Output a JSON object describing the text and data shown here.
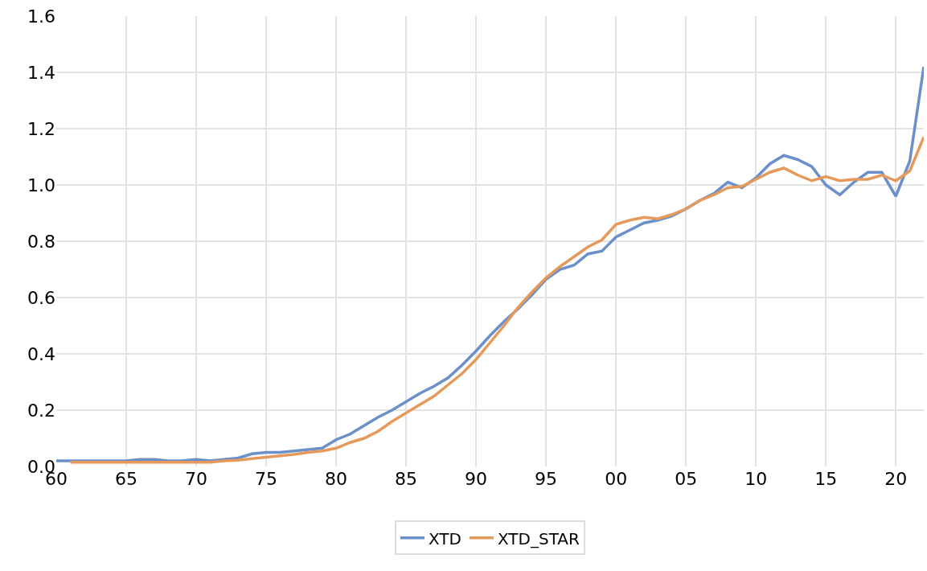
{
  "chart_data": {
    "type": "line",
    "x": [
      1960,
      1961,
      1962,
      1963,
      1964,
      1965,
      1966,
      1967,
      1968,
      1969,
      1970,
      1971,
      1972,
      1973,
      1974,
      1975,
      1976,
      1977,
      1978,
      1979,
      1980,
      1981,
      1982,
      1983,
      1984,
      1985,
      1986,
      1987,
      1988,
      1989,
      1990,
      1991,
      1992,
      1993,
      1994,
      1995,
      1996,
      1997,
      1998,
      1999,
      2000,
      2001,
      2002,
      2003,
      2004,
      2005,
      2006,
      2007,
      2008,
      2009,
      2010,
      2011,
      2012,
      2013,
      2014,
      2015,
      2016,
      2017,
      2018,
      2019,
      2020,
      2021,
      2022
    ],
    "series": [
      {
        "name": "XTD",
        "color": "#6a8fc9",
        "values": [
          0.02,
          0.02,
          0.02,
          0.02,
          0.02,
          0.02,
          0.025,
          0.025,
          0.02,
          0.02,
          0.025,
          0.02,
          0.025,
          0.03,
          0.045,
          0.05,
          0.05,
          0.055,
          0.06,
          0.065,
          0.095,
          0.115,
          0.145,
          0.175,
          0.2,
          0.23,
          0.26,
          0.285,
          0.315,
          0.36,
          0.41,
          0.465,
          0.515,
          0.56,
          0.61,
          0.665,
          0.7,
          0.715,
          0.755,
          0.765,
          0.815,
          0.84,
          0.865,
          0.875,
          0.89,
          0.915,
          0.945,
          0.97,
          1.01,
          0.99,
          1.025,
          1.075,
          1.105,
          1.09,
          1.065,
          1.0,
          0.965,
          1.01,
          1.045,
          1.045,
          0.96,
          1.085,
          1.42
        ]
      },
      {
        "name": "XTD_STAR",
        "color": "#e59a5c",
        "values": [
          null,
          0.015,
          0.015,
          0.015,
          0.015,
          0.015,
          0.015,
          0.015,
          0.015,
          0.015,
          0.015,
          0.015,
          0.02,
          0.022,
          0.028,
          0.033,
          0.038,
          0.043,
          0.05,
          0.055,
          0.065,
          0.085,
          0.1,
          0.125,
          0.16,
          0.19,
          0.22,
          0.25,
          0.29,
          0.33,
          0.38,
          0.44,
          0.5,
          0.565,
          0.62,
          0.67,
          0.71,
          0.745,
          0.78,
          0.805,
          0.86,
          0.875,
          0.885,
          0.88,
          0.895,
          0.915,
          0.945,
          0.965,
          0.99,
          0.995,
          1.02,
          1.045,
          1.06,
          1.035,
          1.015,
          1.03,
          1.015,
          1.02,
          1.02,
          1.035,
          1.015,
          1.05,
          1.17
        ]
      }
    ],
    "xlim": [
      1960,
      2022
    ],
    "xticks": [
      {
        "value": 1960,
        "label": "60"
      },
      {
        "value": 1965,
        "label": "65"
      },
      {
        "value": 1970,
        "label": "70"
      },
      {
        "value": 1975,
        "label": "75"
      },
      {
        "value": 1980,
        "label": "80"
      },
      {
        "value": 1985,
        "label": "85"
      },
      {
        "value": 1990,
        "label": "90"
      },
      {
        "value": 1995,
        "label": "95"
      },
      {
        "value": 2000,
        "label": "00"
      },
      {
        "value": 2005,
        "label": "05"
      },
      {
        "value": 2010,
        "label": "10"
      },
      {
        "value": 2015,
        "label": "15"
      },
      {
        "value": 2020,
        "label": "20"
      }
    ],
    "ylim": [
      0,
      1.6
    ],
    "yticks": [
      {
        "value": 0,
        "label": "0.0"
      },
      {
        "value": 0.2,
        "label": "0.2"
      },
      {
        "value": 0.4,
        "label": "0.4"
      },
      {
        "value": 0.6,
        "label": "0.6"
      },
      {
        "value": 0.8,
        "label": "0.8"
      },
      {
        "value": 1.0,
        "label": "1.0"
      },
      {
        "value": 1.2,
        "label": "1.2"
      },
      {
        "value": 1.4,
        "label": "1.4"
      },
      {
        "value": 1.6,
        "label": "1.6"
      }
    ],
    "grid": true,
    "legend": "bottom",
    "marker": "none",
    "line_style": "solid"
  }
}
